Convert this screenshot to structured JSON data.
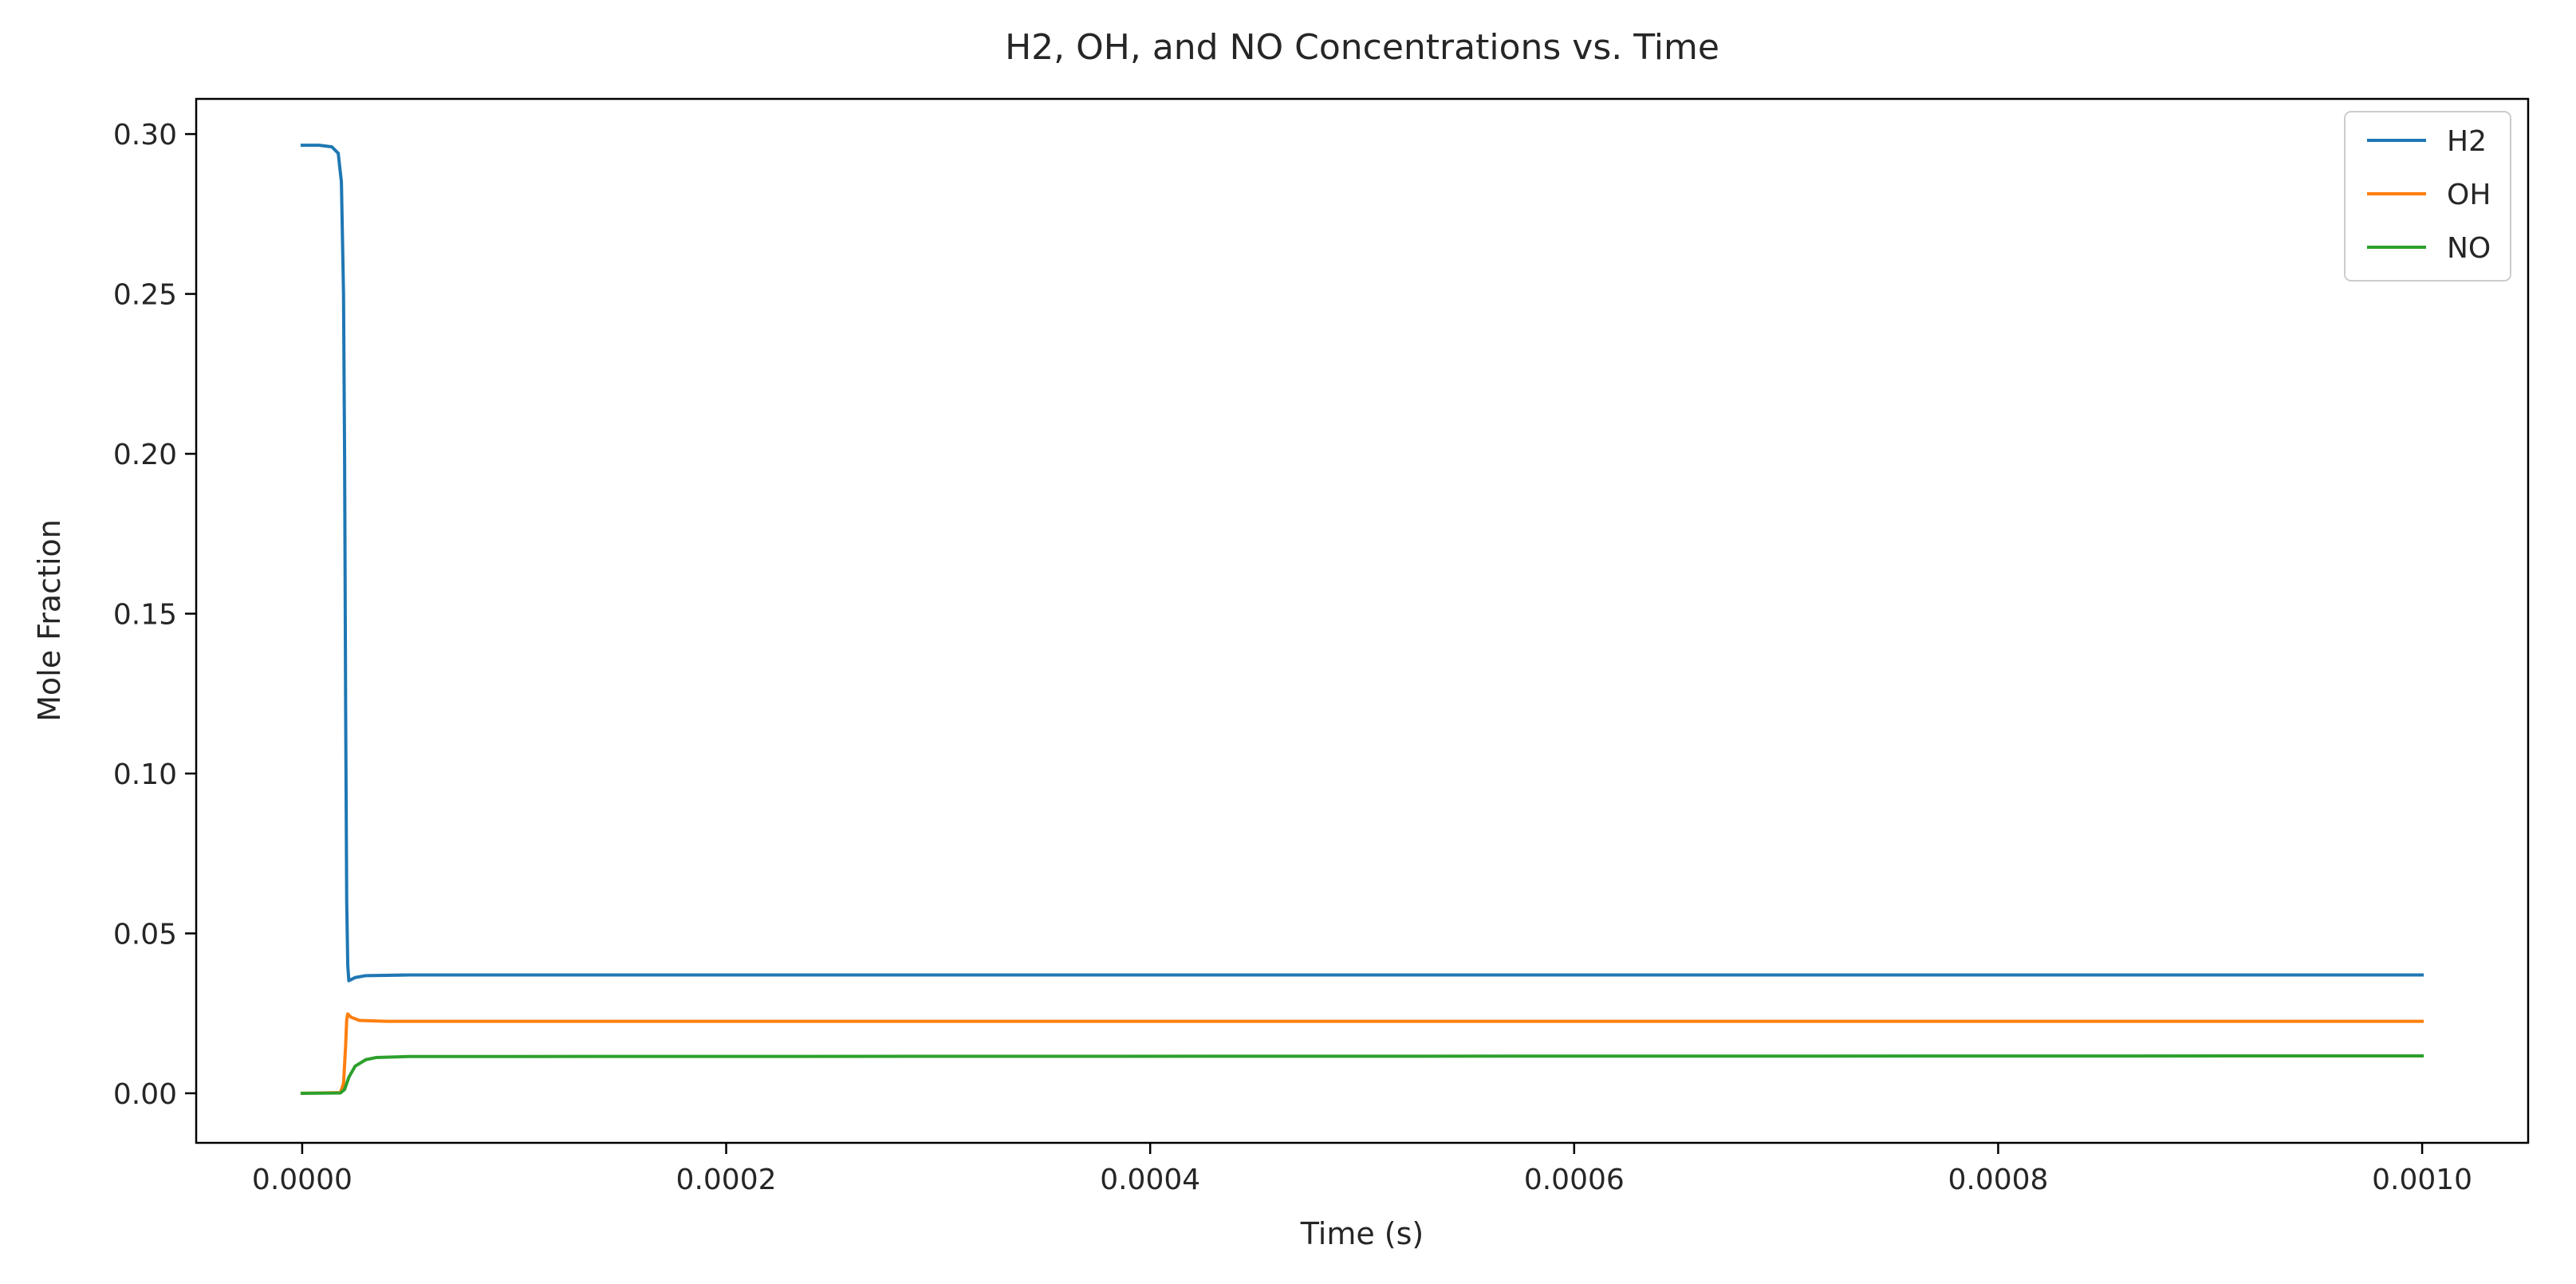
{
  "chart_data": {
    "type": "line",
    "title": "H2, OH, and NO Concentrations vs. Time",
    "xlabel": "Time (s)",
    "ylabel": "Mole Fraction",
    "xlim": [
      -5e-05,
      0.00105
    ],
    "ylim": [
      -0.0155,
      0.311
    ],
    "xticks": [
      0.0,
      0.0002,
      0.0004,
      0.0006,
      0.0008,
      0.001
    ],
    "xtick_labels": [
      "0.0000",
      "0.0002",
      "0.0004",
      "0.0006",
      "0.0008",
      "0.0010"
    ],
    "yticks": [
      0.0,
      0.05,
      0.1,
      0.15,
      0.2,
      0.25,
      0.3
    ],
    "ytick_labels": [
      "0.00",
      "0.05",
      "0.10",
      "0.15",
      "0.20",
      "0.25",
      "0.30"
    ],
    "grid": false,
    "legend_position": "top-right",
    "series": [
      {
        "name": "H2",
        "color": "#1f77b4",
        "points": [
          [
            0.0,
            0.2965
          ],
          [
            8e-06,
            0.2965
          ],
          [
            1.4e-05,
            0.296
          ],
          [
            1.7e-05,
            0.294
          ],
          [
            1.85e-05,
            0.285
          ],
          [
            1.95e-05,
            0.25
          ],
          [
            2e-05,
            0.2
          ],
          [
            2.05e-05,
            0.12
          ],
          [
            2.1e-05,
            0.06
          ],
          [
            2.15e-05,
            0.04
          ],
          [
            2.2e-05,
            0.0352
          ],
          [
            2.5e-05,
            0.0362
          ],
          [
            3e-05,
            0.0368
          ],
          [
            5e-05,
            0.037
          ],
          [
            0.001,
            0.037
          ]
        ]
      },
      {
        "name": "OH",
        "color": "#ff7f0e",
        "points": [
          [
            0.0,
            0.0
          ],
          [
            1.8e-05,
            0.0002
          ],
          [
            1.95e-05,
            0.003
          ],
          [
            2.05e-05,
            0.015
          ],
          [
            2.1e-05,
            0.023
          ],
          [
            2.15e-05,
            0.0248
          ],
          [
            2.3e-05,
            0.0238
          ],
          [
            2.7e-05,
            0.0228
          ],
          [
            4e-05,
            0.0225
          ],
          [
            0.001,
            0.0225
          ]
        ]
      },
      {
        "name": "NO",
        "color": "#2ca02c",
        "points": [
          [
            0.0,
            0.0
          ],
          [
            1.8e-05,
            0.0001
          ],
          [
            2e-05,
            0.0012
          ],
          [
            2.2e-05,
            0.005
          ],
          [
            2.5e-05,
            0.0085
          ],
          [
            3e-05,
            0.0105
          ],
          [
            3.5e-05,
            0.0112
          ],
          [
            5e-05,
            0.0115
          ],
          [
            0.001,
            0.0117
          ]
        ]
      }
    ]
  }
}
